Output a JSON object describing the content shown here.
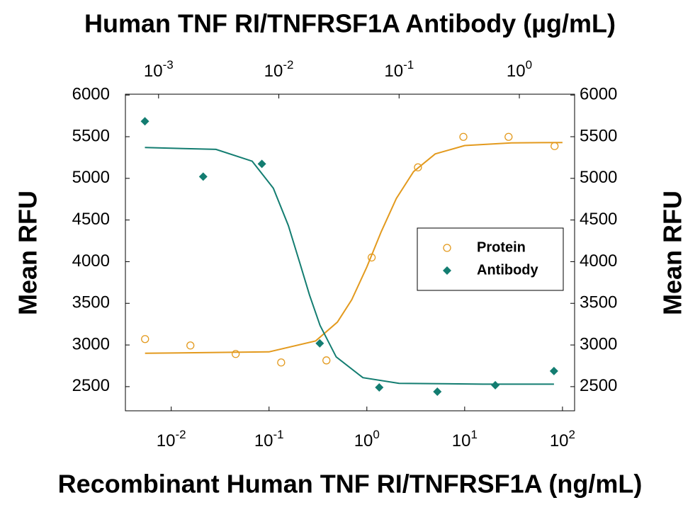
{
  "chart_data": {
    "type": "scatter",
    "title": "Human TNF RI/TNFRSF1A Antibody (µg/mL)",
    "xlabel": "Recombinant Human TNF RI/TNFRSF1A (ng/mL)",
    "ylabel": "Mean RFU",
    "y2label": "Mean RFU",
    "xscale": "log",
    "x2scale": "log",
    "xlim": [
      0.0034,
      133
    ],
    "xticks": [
      {
        "value": 0.01,
        "label": "10-2"
      },
      {
        "value": 0.1,
        "label": "10-1"
      },
      {
        "value": 1,
        "label": "100"
      },
      {
        "value": 10,
        "label": "101"
      },
      {
        "value": 100,
        "label": "102"
      }
    ],
    "x2lim": [
      0.00053,
      2.88
    ],
    "x2ticks": [
      {
        "value": 0.001,
        "label": "10-3"
      },
      {
        "value": 0.01,
        "label": "10-2"
      },
      {
        "value": 0.1,
        "label": "10-1"
      },
      {
        "value": 1,
        "label": "100"
      }
    ],
    "ylim": [
      2210,
      6010
    ],
    "yticks": [
      2500,
      3000,
      3500,
      4000,
      4500,
      5000,
      5500,
      6000
    ],
    "y2lim": [
      2210,
      6010
    ],
    "y2ticks": [
      2500,
      3000,
      3500,
      4000,
      4500,
      5000,
      5500,
      6000
    ],
    "legend": "right",
    "series": [
      {
        "name": "Protein",
        "color": "#e39a1e",
        "marker": "circle",
        "xaxis": "x",
        "x": [
          0.0054,
          0.0157,
          0.0456,
          0.133,
          0.386,
          1.12,
          3.33,
          9.7,
          28.1,
          83
        ],
        "values": [
          3071,
          2994,
          2892,
          2790,
          2815,
          4050,
          5132,
          5498,
          5498,
          5387
        ],
        "fit": {
          "x": [
            0.0054,
            0.1,
            0.3,
            0.5,
            0.7,
            1,
            1.4,
            2,
            3,
            5,
            10,
            30,
            100
          ],
          "values": [
            2900,
            2917,
            3049,
            3274,
            3542,
            3937,
            4358,
            4759,
            5081,
            5293,
            5394,
            5426,
            5430
          ]
        }
      },
      {
        "name": "Antibody",
        "color": "#137d71",
        "marker": "diamond",
        "xaxis": "x2",
        "x": [
          0.00077,
          0.00235,
          0.00723,
          0.0219,
          0.0684,
          0.208,
          0.631,
          1.94
        ],
        "values": [
          5685,
          5021,
          5174,
          3020,
          2491,
          2440,
          2517,
          2687
        ],
        "fit": {
          "x": [
            0.00077,
            0.003,
            0.006,
            0.009,
            0.012,
            0.015,
            0.018,
            0.022,
            0.03,
            0.05,
            0.1,
            0.5,
            1.94
          ],
          "values": [
            5370,
            5348,
            5206,
            4882,
            4433,
            3978,
            3598,
            3235,
            2857,
            2608,
            2540,
            2530,
            2530
          ]
        }
      }
    ]
  }
}
